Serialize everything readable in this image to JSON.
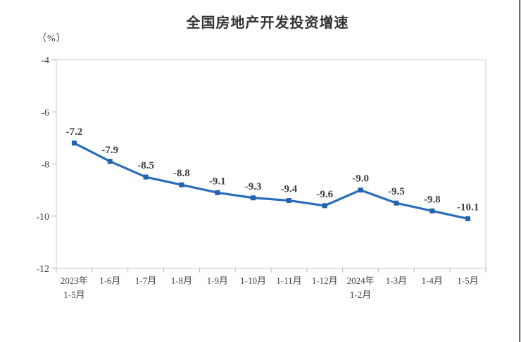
{
  "page": {
    "title": "全国房地产开发投资增速",
    "unit_label": "（%）"
  },
  "chart_data": {
    "type": "line",
    "title": "全国房地产开发投资增速",
    "ylabel": "（%）",
    "xlabel": "",
    "categories": [
      "2023年\n1-5月",
      "1-6月",
      "1-7月",
      "1-8月",
      "1-9月",
      "1-10月",
      "1-11月",
      "1-12月",
      "2024年\n1-2月",
      "1-3月",
      "1-4月",
      "1-5月"
    ],
    "values": [
      -7.2,
      -7.9,
      -8.5,
      -8.8,
      -9.1,
      -9.3,
      -9.4,
      -9.6,
      -9.0,
      -9.5,
      -9.8,
      -10.1
    ],
    "point_labels": [
      "-7.2",
      "-7.9",
      "-8.5",
      "-8.8",
      "-9.1",
      "-9.3",
      "-9.4",
      "-9.6",
      "-9.0",
      "-9.5",
      "-9.8",
      "-10.1"
    ],
    "ylim": [
      -12,
      -4
    ],
    "yticks": [
      "-4",
      "-6",
      "-8",
      "-10",
      "-12"
    ],
    "ytick_values": [
      -4,
      -6,
      -8,
      -10,
      -12
    ],
    "grid": false,
    "legend_position": "none",
    "colors": {
      "line": "#2A6DB9",
      "marker": "#2262AE",
      "data_label": "#404040",
      "axis_text": "#404040",
      "plot_border": "#D9D9D9",
      "tick": "#BFBFBF",
      "title": "#333333",
      "window_edge": "#2B2B2B"
    }
  }
}
